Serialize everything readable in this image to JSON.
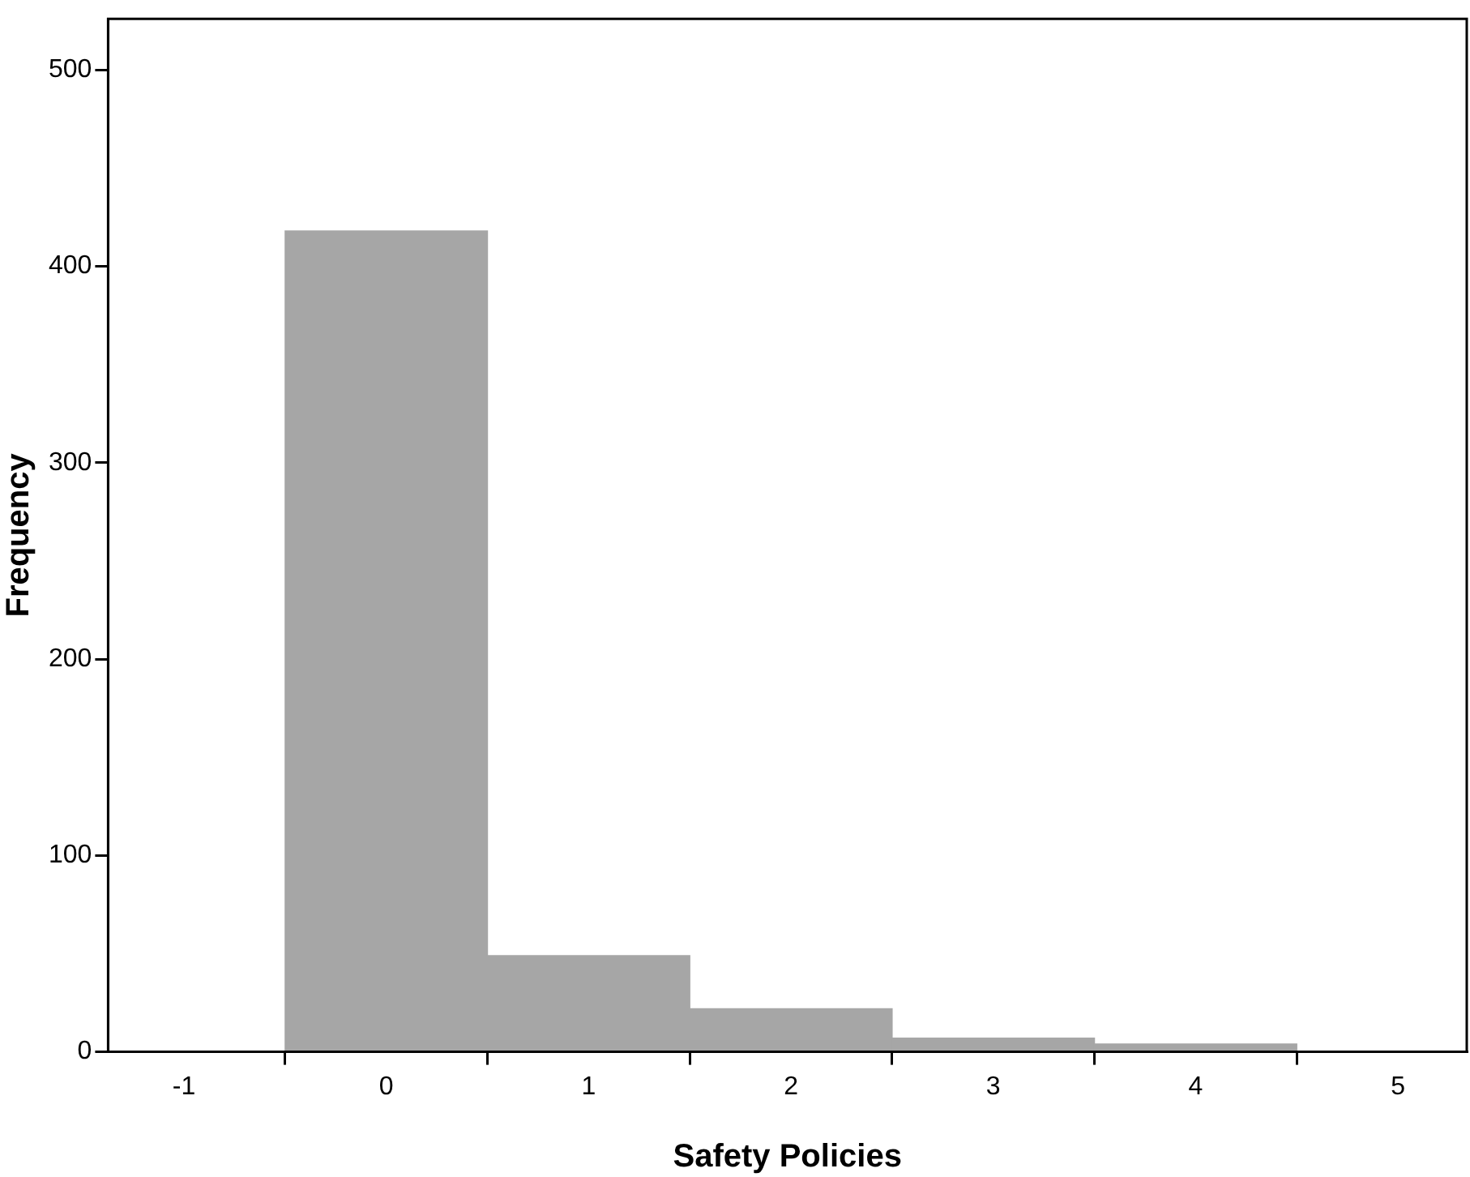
{
  "chart_data": {
    "type": "histogram",
    "xlabel": "Safety Policies",
    "ylabel": "Frequency",
    "bins": [
      -0.5,
      0.5,
      1.5,
      2.5,
      3.5,
      4.5
    ],
    "values": [
      418,
      49,
      22,
      7,
      4
    ],
    "color": "#a6a6a6",
    "xlim": [
      -1.375,
      5.34
    ],
    "xticks": [
      -1,
      0,
      1,
      2,
      3,
      4,
      5
    ],
    "ylim": [
      0,
      526
    ],
    "yticks": [
      0,
      100,
      200,
      300,
      400,
      500
    ],
    "grid": false,
    "legend": false
  }
}
